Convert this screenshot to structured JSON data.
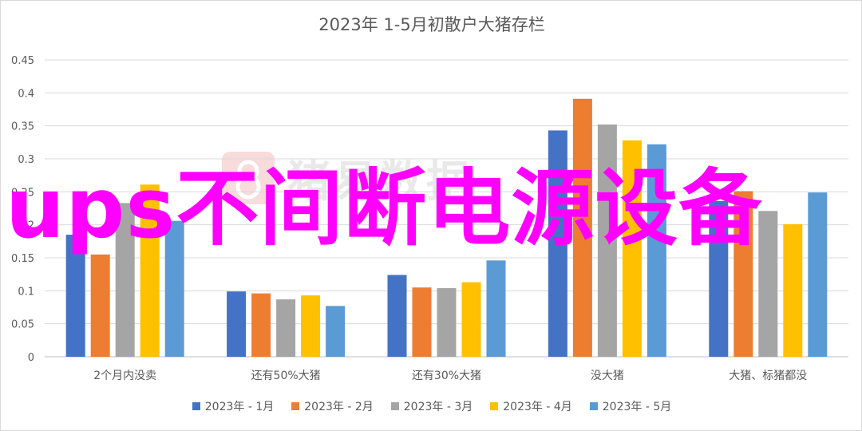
{
  "chart_data": {
    "type": "bar",
    "title": "2023年 1-5月初散户大猪存栏",
    "categories": [
      "2个月内没卖",
      "还有50%大猪",
      "还有30%大猪",
      "没大猪",
      "大猪、标猪都没"
    ],
    "ylim": [
      0,
      0.45
    ],
    "yticks": [
      "0",
      "0.05",
      "0.1",
      "0.15",
      "0.2",
      "0.25",
      "0.3",
      "0.35",
      "0.4",
      "0.45"
    ],
    "grid": true,
    "legend_position": "bottom",
    "series": [
      {
        "name": "2023年 - 1月",
        "color": "#4472C4",
        "values": [
          0.185,
          0.099,
          0.124,
          0.343,
          0.236
        ]
      },
      {
        "name": "2023年 - 2月",
        "color": "#ED7D31",
        "values": [
          0.155,
          0.096,
          0.105,
          0.391,
          0.251
        ]
      },
      {
        "name": "2023年 - 3月",
        "color": "#A5A5A5",
        "values": [
          0.233,
          0.087,
          0.104,
          0.352,
          0.221
        ]
      },
      {
        "name": "2023年 - 4月",
        "color": "#FFC000",
        "values": [
          0.261,
          0.093,
          0.113,
          0.328,
          0.201
        ]
      },
      {
        "name": "2023年 - 5月",
        "color": "#5B9BD5",
        "values": [
          0.206,
          0.077,
          0.146,
          0.322,
          0.249
        ]
      }
    ]
  },
  "watermark": {
    "text": "猪易数据",
    "icon": "logo-mark-icon"
  },
  "overlay": {
    "text": "ups不间断电源设备",
    "color": "#FF00FF"
  }
}
